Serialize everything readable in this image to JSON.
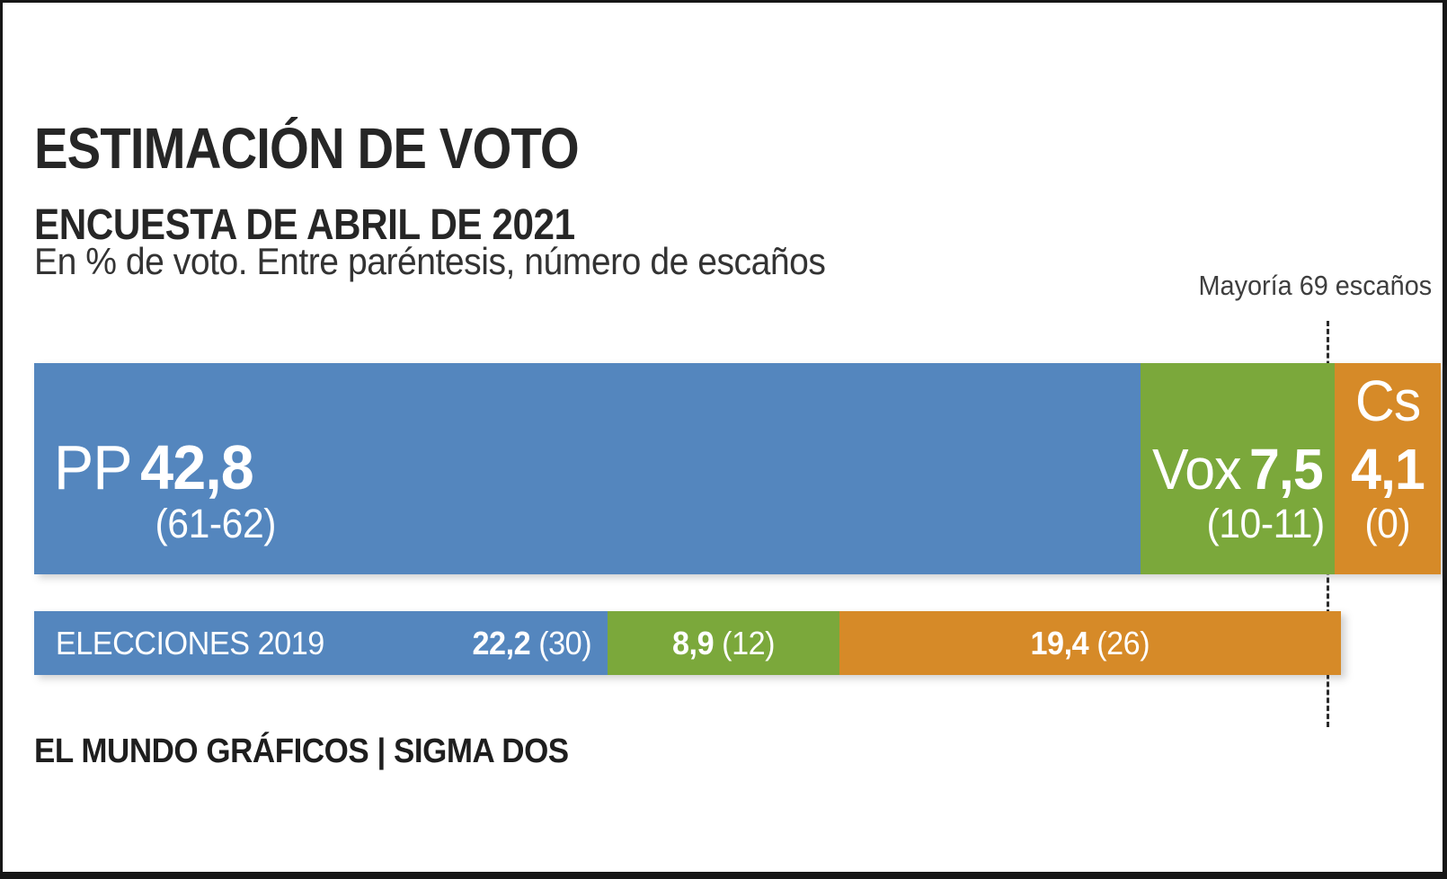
{
  "header": {
    "title": "ESTIMACIÓN DE VOTO",
    "subtitle": "ENCUESTA DE ABRIL DE 2021",
    "note": "En % de voto. Entre paréntesis, número de escaños"
  },
  "majority": {
    "label": "Mayoría 69 escaños",
    "seats": 69
  },
  "footer": {
    "credit": "EL MUNDO GRÁFICOS | SIGMA DOS"
  },
  "colors": {
    "pp": "#5486BE",
    "vox": "#7BA83B",
    "cs": "#D68A28"
  },
  "chart_data": {
    "type": "bar",
    "orientation": "horizontal",
    "stacked": true,
    "title": "ESTIMACIÓN DE VOTO",
    "subtitle": "ENCUESTA DE ABRIL DE 2021",
    "unit_note": "En % de voto. Entre paréntesis, número de escaños",
    "majority_annotation": "Mayoría 69 escaños",
    "rows": [
      {
        "segments": [
          {
            "party": "PP",
            "value": "42,8",
            "pct": 42.8,
            "seats": "(61-62)",
            "color": "#5486BE"
          },
          {
            "party": "Vox",
            "value": "7,5",
            "pct": 7.5,
            "seats": "(10-11)",
            "color": "#7BA83B"
          },
          {
            "party": "Cs",
            "value": "4,1",
            "pct": 4.1,
            "seats": "(0)",
            "color": "#D68A28"
          }
        ]
      },
      {
        "label": "ELECCIONES 2019",
        "segments": [
          {
            "party": "PP",
            "value": "22,2",
            "pct": 22.2,
            "seats": "(30)",
            "color": "#5486BE"
          },
          {
            "party": "Vox",
            "value": "8,9",
            "pct": 8.9,
            "seats": "(12)",
            "color": "#7BA83B"
          },
          {
            "party": "Cs",
            "value": "19,4",
            "pct": 19.4,
            "seats": "(26)",
            "color": "#D68A28"
          }
        ]
      }
    ]
  }
}
